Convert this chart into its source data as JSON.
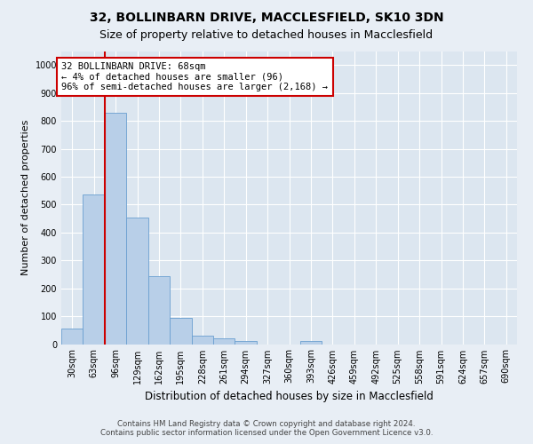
{
  "title": "32, BOLLINBARN DRIVE, MACCLESFIELD, SK10 3DN",
  "subtitle": "Size of property relative to detached houses in Macclesfield",
  "xlabel": "Distribution of detached houses by size in Macclesfield",
  "ylabel": "Number of detached properties",
  "footer_line1": "Contains HM Land Registry data © Crown copyright and database right 2024.",
  "footer_line2": "Contains public sector information licensed under the Open Government Licence v3.0.",
  "bar_labels": [
    "30sqm",
    "63sqm",
    "96sqm",
    "129sqm",
    "162sqm",
    "195sqm",
    "228sqm",
    "261sqm",
    "294sqm",
    "327sqm",
    "360sqm",
    "393sqm",
    "426sqm",
    "459sqm",
    "492sqm",
    "525sqm",
    "558sqm",
    "591sqm",
    "624sqm",
    "657sqm",
    "690sqm"
  ],
  "bar_values": [
    55,
    535,
    830,
    455,
    245,
    95,
    30,
    20,
    10,
    0,
    0,
    10,
    0,
    0,
    0,
    0,
    0,
    0,
    0,
    0,
    0
  ],
  "bar_color": "#b8cfe8",
  "bar_edge_color": "#6a9fd0",
  "bar_edge_width": 0.6,
  "ylim": [
    0,
    1050
  ],
  "yticks": [
    0,
    100,
    200,
    300,
    400,
    500,
    600,
    700,
    800,
    900,
    1000
  ],
  "property_line_color": "#cc0000",
  "annotation_text": "32 BOLLINBARN DRIVE: 68sqm\n← 4% of detached houses are smaller (96)\n96% of semi-detached houses are larger (2,168) →",
  "annotation_box_color": "#ffffff",
  "annotation_box_edge_color": "#cc0000",
  "bg_color": "#e8eef5",
  "plot_bg_color": "#dce6f0",
  "grid_color": "#ffffff",
  "title_fontsize": 10,
  "subtitle_fontsize": 9,
  "tick_label_fontsize": 7,
  "ylabel_fontsize": 8,
  "xlabel_fontsize": 8.5
}
